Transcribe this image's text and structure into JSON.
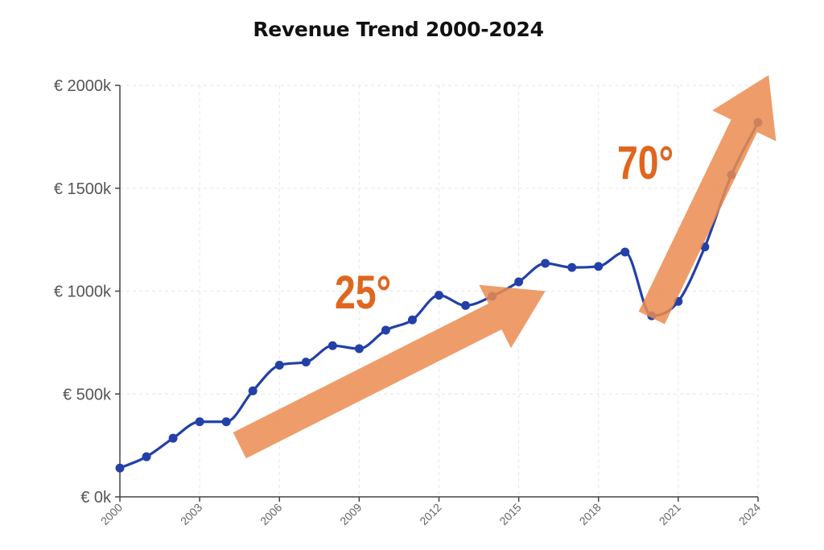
{
  "page_title": "Revenue Trend 2000-2024",
  "colors": {
    "line": "#2340a8",
    "arrow": "#eb8c50",
    "annotation_text": "#e0661f",
    "grid": "#e6e6e6",
    "axis": "#444444"
  },
  "chart_data": {
    "type": "line",
    "title": "Revenue Trend 2000-2024",
    "xlabel": "",
    "ylabel": "",
    "x": [
      2000,
      2001,
      2002,
      2003,
      2004,
      2005,
      2006,
      2007,
      2008,
      2009,
      2010,
      2011,
      2012,
      2013,
      2014,
      2015,
      2016,
      2017,
      2018,
      2019,
      2020,
      2021,
      2022,
      2023,
      2024
    ],
    "series": [
      {
        "values": [
          140,
          195,
          285,
          365,
          365,
          515,
          640,
          655,
          735,
          720,
          810,
          860,
          980,
          930,
          975,
          1045,
          1135,
          1115,
          1120,
          1190,
          880,
          950,
          1215,
          1565,
          1820
        ]
      }
    ],
    "xlim": [
      2000,
      2024
    ],
    "ylim": [
      0,
      2000
    ],
    "x_ticks": [
      "2000",
      "2003",
      "2006",
      "2009",
      "2012",
      "2015",
      "2018",
      "2021",
      "2024"
    ],
    "x_tick_values": [
      2000,
      2003,
      2006,
      2009,
      2012,
      2015,
      2018,
      2021,
      2024
    ],
    "y_ticks": [
      "€ 0k",
      "€ 500k",
      "€ 1000k",
      "€ 1500k",
      "€ 2000k"
    ],
    "y_tick_values": [
      0,
      500,
      1000,
      1500,
      2000
    ],
    "grid": true,
    "grid_style": "dashed",
    "marker": "circle",
    "smooth": true,
    "annotations": [
      {
        "label": "25°",
        "type": "arrow",
        "from": [
          2004.5,
          250
        ],
        "to": [
          2016,
          1000
        ]
      },
      {
        "label": "70°",
        "type": "arrow",
        "from": [
          2020,
          870
        ],
        "to": [
          2024.4,
          2050
        ]
      }
    ]
  }
}
